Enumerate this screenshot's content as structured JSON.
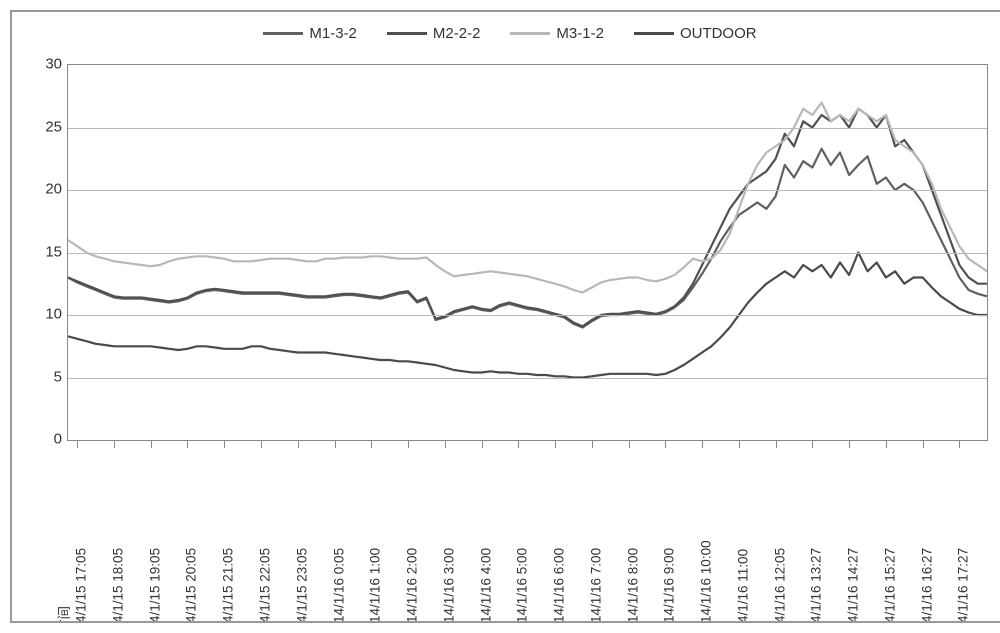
{
  "chart": {
    "type": "line",
    "background_color": "#ffffff",
    "border_color": "#999999",
    "grid_color": "#bbbbbb",
    "axis_color": "#888888",
    "text_color": "#333333",
    "label_fontsize": 14,
    "tick_fontsize": 13,
    "line_width": 2.2,
    "y": {
      "min": 0,
      "max": 30,
      "step": 5,
      "ticks": [
        0,
        5,
        10,
        15,
        20,
        25,
        30
      ]
    },
    "x_axis_title": "时间",
    "x_labels": [
      "14/1/15 17:05",
      "14/1/15 18:05",
      "14/1/15 19:05",
      "14/1/15 20:05",
      "14/1/15 21:05",
      "14/1/15 22:05",
      "14/1/15 23:05",
      "014/1/16 0:05",
      "014/1/16 1:00",
      "014/1/16 2:00",
      "014/1/16 3:00",
      "014/1/16 4:00",
      "014/1/16 5:00",
      "014/1/16 6:00",
      "014/1/16 7:00",
      "014/1/16 8:00",
      "014/1/16 9:00",
      "014/1/16 10:00",
      "14/1/16 11:00",
      "14/1/16 12:05",
      "14/1/16 13:27",
      "14/1/16 14:27",
      "14/1/16 15:27",
      "14/1/16 16:27",
      "14/1/16 17:27"
    ],
    "n_points": 101,
    "x_label_interval": 4,
    "series": [
      {
        "name": "M1-3-2",
        "color": "#606060",
        "values": [
          13.0,
          12.6,
          12.3,
          12.0,
          11.7,
          11.4,
          11.3,
          11.3,
          11.3,
          11.2,
          11.1,
          11.0,
          11.1,
          11.3,
          11.7,
          11.9,
          12.0,
          11.9,
          11.8,
          11.7,
          11.7,
          11.7,
          11.7,
          11.7,
          11.6,
          11.5,
          11.4,
          11.4,
          11.4,
          11.5,
          11.6,
          11.6,
          11.5,
          11.4,
          11.3,
          11.5,
          11.7,
          11.8,
          11.0,
          11.3,
          9.6,
          9.8,
          10.2,
          10.4,
          10.6,
          10.4,
          10.3,
          10.7,
          10.9,
          10.7,
          10.5,
          10.4,
          10.2,
          10.0,
          9.8,
          9.3,
          9.0,
          9.5,
          9.9,
          10.0,
          10.0,
          10.1,
          10.2,
          10.1,
          10.0,
          10.2,
          10.6,
          11.2,
          12.2,
          13.3,
          14.5,
          15.9,
          17.0,
          18.0,
          18.5,
          19.0,
          18.5,
          19.5,
          22.0,
          21.0,
          22.3,
          21.8,
          23.3,
          22.0,
          23.0,
          21.2,
          22.0,
          22.7,
          20.5,
          21.0,
          20.0,
          20.5,
          20.0,
          19.0,
          17.5,
          16.0,
          14.5,
          13.0,
          12.0,
          11.7,
          11.5
        ]
      },
      {
        "name": "M2-2-2",
        "color": "#505050",
        "values": [
          13.0,
          12.7,
          12.4,
          12.1,
          11.8,
          11.5,
          11.4,
          11.4,
          11.4,
          11.3,
          11.2,
          11.1,
          11.2,
          11.4,
          11.8,
          12.0,
          12.1,
          12.0,
          11.9,
          11.8,
          11.8,
          11.8,
          11.8,
          11.8,
          11.7,
          11.6,
          11.5,
          11.5,
          11.5,
          11.6,
          11.7,
          11.7,
          11.6,
          11.5,
          11.4,
          11.6,
          11.8,
          11.9,
          11.1,
          11.4,
          9.7,
          9.9,
          10.3,
          10.5,
          10.7,
          10.5,
          10.4,
          10.8,
          11.0,
          10.8,
          10.6,
          10.5,
          10.3,
          10.1,
          9.9,
          9.4,
          9.1,
          9.6,
          10.0,
          10.1,
          10.1,
          10.2,
          10.3,
          10.2,
          10.1,
          10.3,
          10.7,
          11.4,
          12.5,
          14.0,
          15.5,
          17.0,
          18.5,
          19.5,
          20.5,
          21.0,
          21.5,
          22.5,
          24.5,
          23.5,
          25.5,
          25.0,
          26.0,
          25.5,
          26.0,
          25.0,
          26.5,
          26.0,
          25.0,
          26.0,
          23.5,
          24.0,
          23.0,
          22.0,
          20.0,
          18.0,
          16.0,
          14.0,
          13.0,
          12.5,
          12.5
        ]
      },
      {
        "name": "M3-1-2",
        "color": "#b8b8b8",
        "values": [
          16.0,
          15.5,
          15.0,
          14.7,
          14.5,
          14.3,
          14.2,
          14.1,
          14.0,
          13.9,
          14.0,
          14.3,
          14.5,
          14.6,
          14.7,
          14.7,
          14.6,
          14.5,
          14.3,
          14.3,
          14.3,
          14.4,
          14.5,
          14.5,
          14.5,
          14.4,
          14.3,
          14.3,
          14.5,
          14.5,
          14.6,
          14.6,
          14.6,
          14.7,
          14.7,
          14.6,
          14.5,
          14.5,
          14.5,
          14.6,
          14.0,
          13.5,
          13.1,
          13.2,
          13.3,
          13.4,
          13.5,
          13.4,
          13.3,
          13.2,
          13.1,
          12.9,
          12.7,
          12.5,
          12.3,
          12.0,
          11.8,
          12.2,
          12.6,
          12.8,
          12.9,
          13.0,
          13.0,
          12.8,
          12.7,
          12.9,
          13.2,
          13.8,
          14.5,
          14.3,
          14.5,
          15.2,
          16.5,
          18.5,
          20.5,
          22.0,
          23.0,
          23.5,
          24.0,
          25.0,
          26.5,
          26.0,
          27.0,
          25.5,
          26.0,
          25.5,
          26.5,
          26.0,
          25.5,
          26.0,
          24.0,
          23.5,
          23.0,
          22.0,
          20.5,
          18.5,
          17.0,
          15.5,
          14.5,
          14.0,
          13.5
        ]
      },
      {
        "name": "OUTDOOR",
        "color": "#4a4a4a",
        "values": [
          8.3,
          8.1,
          7.9,
          7.7,
          7.6,
          7.5,
          7.5,
          7.5,
          7.5,
          7.5,
          7.4,
          7.3,
          7.2,
          7.3,
          7.5,
          7.5,
          7.4,
          7.3,
          7.3,
          7.3,
          7.5,
          7.5,
          7.3,
          7.2,
          7.1,
          7.0,
          7.0,
          7.0,
          7.0,
          6.9,
          6.8,
          6.7,
          6.6,
          6.5,
          6.4,
          6.4,
          6.3,
          6.3,
          6.2,
          6.1,
          6.0,
          5.8,
          5.6,
          5.5,
          5.4,
          5.4,
          5.5,
          5.4,
          5.4,
          5.3,
          5.3,
          5.2,
          5.2,
          5.1,
          5.1,
          5.0,
          5.0,
          5.1,
          5.2,
          5.3,
          5.3,
          5.3,
          5.3,
          5.3,
          5.2,
          5.3,
          5.6,
          6.0,
          6.5,
          7.0,
          7.5,
          8.2,
          9.0,
          10.0,
          11.0,
          11.8,
          12.5,
          13.0,
          13.5,
          13.0,
          14.0,
          13.5,
          14.0,
          13.0,
          14.2,
          13.2,
          15.0,
          13.5,
          14.2,
          13.0,
          13.5,
          12.5,
          13.0,
          13.0,
          12.2,
          11.5,
          11.0,
          10.5,
          10.2,
          10.0,
          10.0
        ]
      }
    ],
    "legend_position": "top"
  }
}
